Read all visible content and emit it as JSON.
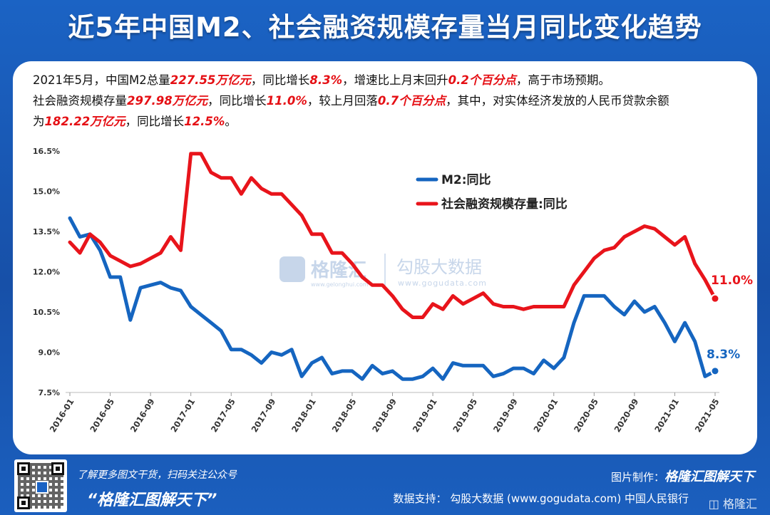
{
  "page": {
    "title": "近5年中国M2、社会融资规模存量当月同比变化趋势",
    "intro": {
      "line1": [
        "2021年5月，中国M2总量",
        "227.55万亿元",
        "，同比增长",
        "8.3%",
        "，增速比上月末回升",
        "0.2个百分点",
        "，高于市场预期。"
      ],
      "line2": [
        "社会融资规模存量",
        "297.98万亿元",
        "，同比增长",
        "11.0%",
        "，较上月回落",
        "0.7个百分点",
        "，其中，对实体经济发放的人民币贷款余额"
      ],
      "line3": [
        "为",
        "182.22万亿元",
        "，同比增长",
        "12.5%",
        "。"
      ]
    },
    "watermark": {
      "brand": "格隆汇",
      "site_cn": "勾股大数据",
      "site_url": "www.gogudata.com",
      "brand_url": "www.gelonghui.com"
    },
    "footer": {
      "note": "了解更多图文干货，扫码关注公众号",
      "brand": "“格隆汇图解天下”",
      "maker_label": "图片制作：",
      "maker": "格隆汇图解天下",
      "source": "数据支持：  勾股大数据  (www.gogudata.com)  中国人民银行",
      "corner_logo": "格隆汇"
    }
  },
  "chart_data": {
    "type": "line",
    "ylim": [
      7.5,
      16.5
    ],
    "yticks": [
      "7.5%",
      "9.0%",
      "10.5%",
      "12.0%",
      "13.5%",
      "15.0%",
      "16.5%"
    ],
    "ytick_values": [
      7.5,
      9.0,
      10.5,
      12.0,
      13.5,
      15.0,
      16.5
    ],
    "xtick_labels": [
      "2016-01",
      "2016-05",
      "2016-09",
      "2017-01",
      "2017-05",
      "2017-09",
      "2018-01",
      "2018-05",
      "2018-09",
      "2019-01",
      "2019-05",
      "2019-09",
      "2020-01",
      "2020-05",
      "2020-09",
      "2021-01",
      "2021-05"
    ],
    "x": [
      "2016-01",
      "2016-02",
      "2016-03",
      "2016-04",
      "2016-05",
      "2016-06",
      "2016-07",
      "2016-08",
      "2016-09",
      "2016-10",
      "2016-11",
      "2016-12",
      "2017-01",
      "2017-02",
      "2017-03",
      "2017-04",
      "2017-05",
      "2017-06",
      "2017-07",
      "2017-08",
      "2017-09",
      "2017-10",
      "2017-11",
      "2017-12",
      "2018-01",
      "2018-02",
      "2018-03",
      "2018-04",
      "2018-05",
      "2018-06",
      "2018-07",
      "2018-08",
      "2018-09",
      "2018-10",
      "2018-11",
      "2018-12",
      "2019-01",
      "2019-02",
      "2019-03",
      "2019-04",
      "2019-05",
      "2019-06",
      "2019-07",
      "2019-08",
      "2019-09",
      "2019-10",
      "2019-11",
      "2019-12",
      "2020-01",
      "2020-02",
      "2020-03",
      "2020-04",
      "2020-05",
      "2020-06",
      "2020-07",
      "2020-08",
      "2020-09",
      "2020-10",
      "2020-11",
      "2020-12",
      "2021-01",
      "2021-02",
      "2021-03",
      "2021-04",
      "2021-05"
    ],
    "series": [
      {
        "name": "M2:同比",
        "color": "#1565c0",
        "values": [
          14.0,
          13.3,
          13.4,
          12.8,
          11.8,
          11.8,
          10.2,
          11.4,
          11.5,
          11.6,
          11.4,
          11.3,
          10.7,
          10.4,
          10.1,
          9.8,
          9.1,
          9.1,
          8.9,
          8.6,
          9.0,
          8.9,
          9.1,
          8.1,
          8.6,
          8.8,
          8.2,
          8.3,
          8.3,
          8.0,
          8.5,
          8.2,
          8.3,
          8.0,
          8.0,
          8.1,
          8.4,
          8.0,
          8.6,
          8.5,
          8.5,
          8.5,
          8.1,
          8.2,
          8.4,
          8.4,
          8.2,
          8.7,
          8.4,
          8.8,
          10.1,
          11.1,
          11.1,
          11.1,
          10.7,
          10.4,
          10.9,
          10.5,
          10.7,
          10.1,
          9.4,
          10.1,
          9.4,
          8.1,
          8.3
        ],
        "end_label": "8.3%"
      },
      {
        "name": "社会融资规模存量:同比",
        "color": "#e8141b",
        "values": [
          13.1,
          12.7,
          13.4,
          13.1,
          12.6,
          12.4,
          12.2,
          12.3,
          12.5,
          12.7,
          13.3,
          12.8,
          16.4,
          16.4,
          15.7,
          15.5,
          15.5,
          14.9,
          15.5,
          15.1,
          14.9,
          14.9,
          14.5,
          14.1,
          13.4,
          13.4,
          12.7,
          12.7,
          12.3,
          11.8,
          11.5,
          11.5,
          11.1,
          10.6,
          10.3,
          10.3,
          10.8,
          10.6,
          11.1,
          10.8,
          11.0,
          11.2,
          10.8,
          10.7,
          10.7,
          10.6,
          10.7,
          10.7,
          10.7,
          10.7,
          11.5,
          12.0,
          12.5,
          12.8,
          12.9,
          13.3,
          13.5,
          13.7,
          13.6,
          13.3,
          13.0,
          13.3,
          12.3,
          11.7,
          11.0
        ],
        "end_label": "11.0%"
      }
    ],
    "legend_position": "top-right",
    "grid": false
  }
}
